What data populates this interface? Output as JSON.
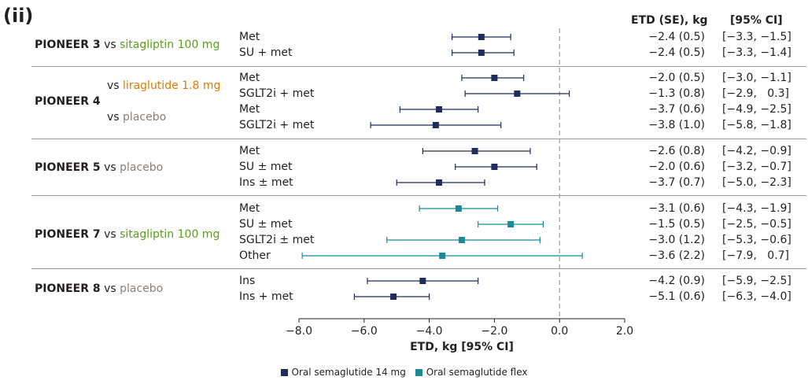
{
  "panel_label": "(ii)",
  "headers": {
    "etd": "ETD (SE), kg",
    "ci": "[95% CI]"
  },
  "colors": {
    "semaglutide_14mg": "#1f2c5c",
    "semaglutide_flex": "#1a8a96",
    "sitagliptin": "#5a9e1a",
    "liraglutide": "#e07b00",
    "placebo": "#8a8079",
    "axis": "#231f20",
    "zero_line": "#9a9a9a"
  },
  "trials": [
    {
      "name": "PIONEER 3",
      "vs": "vs",
      "comparator": "sitagliptin 100 mg"
    },
    {
      "name": "PIONEER 4",
      "comparators": [
        {
          "vs": "vs",
          "label": "liraglutide 1.8 mg"
        },
        {
          "vs": "vs",
          "label": "placebo"
        }
      ]
    },
    {
      "name": "PIONEER 5",
      "vs": "vs",
      "comparator": "placebo"
    },
    {
      "name": "PIONEER 7",
      "vs": "vs",
      "comparator": "sitagliptin 100 mg"
    },
    {
      "name": "PIONEER 8",
      "vs": "vs",
      "comparator": "placebo"
    }
  ],
  "chart_data": {
    "type": "scatter",
    "subtype": "forest",
    "xlabel": "ETD, kg [95% CI]",
    "xlim": [
      -8.0,
      2.0
    ],
    "xticks": [
      "−8.0",
      "−6.0",
      "−4.0",
      "−2.0",
      "0.0",
      "2.0"
    ],
    "reference_line": 0,
    "legend": [
      "Oral semaglutide 14 mg",
      "Oral semaglutide flex"
    ],
    "legend_position": "bottom",
    "rows": [
      {
        "subgroup": "Met",
        "series": "Oral semaglutide 14 mg",
        "etd": -2.4,
        "lo": -3.3,
        "hi": -1.5,
        "etd_text": "−2.4 (0.5)",
        "ci_text": "[−3.3, −1.5]"
      },
      {
        "subgroup": "SU + met",
        "series": "Oral semaglutide 14 mg",
        "etd": -2.4,
        "lo": -3.3,
        "hi": -1.4,
        "etd_text": "−2.4 (0.5)",
        "ci_text": "[−3.3, −1.4]"
      },
      {
        "subgroup": "Met",
        "series": "Oral semaglutide 14 mg",
        "etd": -2.0,
        "lo": -3.0,
        "hi": -1.1,
        "etd_text": "−2.0 (0.5)",
        "ci_text": "[−3.0, −1.1]"
      },
      {
        "subgroup": "SGLT2i + met",
        "series": "Oral semaglutide 14 mg",
        "etd": -1.3,
        "lo": -2.9,
        "hi": 0.3,
        "etd_text": "−1.3 (0.8)",
        "ci_text": "[−2.9,   0.3]"
      },
      {
        "subgroup": "Met",
        "series": "Oral semaglutide 14 mg",
        "etd": -3.7,
        "lo": -4.9,
        "hi": -2.5,
        "etd_text": "−3.7 (0.6)",
        "ci_text": "[−4.9, −2.5]"
      },
      {
        "subgroup": "SGLT2i + met",
        "series": "Oral semaglutide 14 mg",
        "etd": -3.8,
        "lo": -5.8,
        "hi": -1.8,
        "etd_text": "−3.8 (1.0)",
        "ci_text": "[−5.8, −1.8]"
      },
      {
        "subgroup": "Met",
        "series": "Oral semaglutide 14 mg",
        "etd": -2.6,
        "lo": -4.2,
        "hi": -0.9,
        "etd_text": "−2.6 (0.8)",
        "ci_text": "[−4.2, −0.9]"
      },
      {
        "subgroup": "SU ± met",
        "series": "Oral semaglutide 14 mg",
        "etd": -2.0,
        "lo": -3.2,
        "hi": -0.7,
        "etd_text": "−2.0 (0.6)",
        "ci_text": "[−3.2, −0.7]"
      },
      {
        "subgroup": "Ins ± met",
        "series": "Oral semaglutide 14 mg",
        "etd": -3.7,
        "lo": -5.0,
        "hi": -2.3,
        "etd_text": "−3.7 (0.7)",
        "ci_text": "[−5.0, −2.3]"
      },
      {
        "subgroup": "Met",
        "series": "Oral semaglutide flex",
        "etd": -3.1,
        "lo": -4.3,
        "hi": -1.9,
        "etd_text": "−3.1 (0.6)",
        "ci_text": "[−4.3, −1.9]"
      },
      {
        "subgroup": "SU ± met",
        "series": "Oral semaglutide flex",
        "etd": -1.5,
        "lo": -2.5,
        "hi": -0.5,
        "etd_text": "−1.5 (0.5)",
        "ci_text": "[−2.5, −0.5]"
      },
      {
        "subgroup": "SGLT2i ± met",
        "series": "Oral semaglutide flex",
        "etd": -3.0,
        "lo": -5.3,
        "hi": -0.6,
        "etd_text": "−3.0 (1.2)",
        "ci_text": "[−5.3, −0.6]"
      },
      {
        "subgroup": "Other",
        "series": "Oral semaglutide flex",
        "etd": -3.6,
        "lo": -7.9,
        "hi": 0.7,
        "etd_text": "−3.6 (2.2)",
        "ci_text": "[−7.9,   0.7]"
      },
      {
        "subgroup": "Ins",
        "series": "Oral semaglutide 14 mg",
        "etd": -4.2,
        "lo": -5.9,
        "hi": -2.5,
        "etd_text": "−4.2 (0.9)",
        "ci_text": "[−5.9, −2.5]"
      },
      {
        "subgroup": "Ins + met",
        "series": "Oral semaglutide 14 mg",
        "etd": -5.1,
        "lo": -6.3,
        "hi": -4.0,
        "etd_text": "−5.1 (0.6)",
        "ci_text": "[−6.3, −4.0]"
      }
    ]
  }
}
